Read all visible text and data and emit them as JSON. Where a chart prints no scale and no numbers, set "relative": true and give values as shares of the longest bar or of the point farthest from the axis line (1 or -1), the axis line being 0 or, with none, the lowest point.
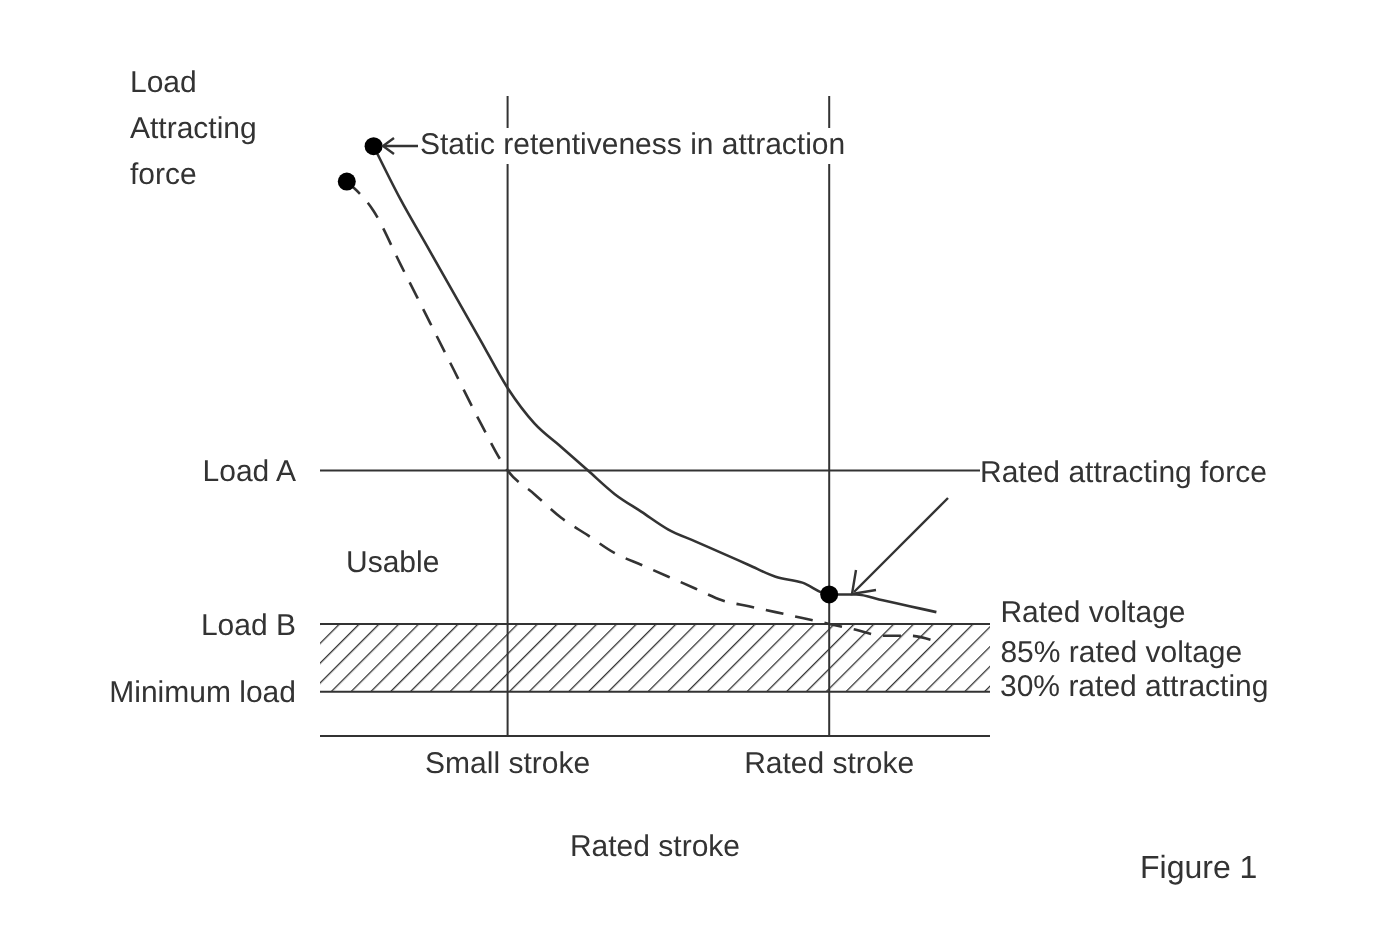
{
  "chart_data": {
    "type": "line",
    "relative": true,
    "grid": "x",
    "xlabel": "Rated stroke",
    "ylabel": "Load Attracting force",
    "categories": [
      null,
      null,
      null,
      null,
      null,
      null,
      null,
      "Small stroke",
      null,
      null,
      null,
      null,
      null,
      null,
      null,
      null,
      null,
      null,
      null,
      "Rated stroke",
      null,
      null,
      null,
      null,
      null,
      null
    ],
    "series": [
      {
        "name": "Rated voltage",
        "color": "#333333",
        "values": [
          null,
          null,
          1,
          0.91,
          0.83,
          0.75,
          0.67,
          0.59,
          0.53,
          0.49,
          0.45,
          0.41,
          0.38,
          0.35,
          0.33,
          0.31,
          0.29,
          0.27,
          0.26,
          0.24,
          0.24,
          0.23,
          0.22,
          0.21,
          null,
          null
        ]
      },
      {
        "name": "85% rated voltage",
        "color": "#333333",
        "line_style": "dashed",
        "values": [
          null,
          0.94,
          0.89,
          0.8,
          0.71,
          0.62,
          0.53,
          0.45,
          0.41,
          0.37,
          0.34,
          0.31,
          0.29,
          0.27,
          0.25,
          0.23,
          0.22,
          0.21,
          0.2,
          0.19,
          0.18,
          0.17,
          0.17,
          0.16,
          null,
          null
        ]
      },
      {
        "type": "scatter",
        "color": "#000000",
        "values": [
          null,
          0.94,
          1,
          null,
          null,
          null,
          null,
          null,
          null,
          null,
          null,
          null,
          null,
          null,
          null,
          null,
          null,
          null,
          null,
          0.24,
          null,
          null,
          null,
          null,
          null,
          null
        ]
      }
    ],
    "ref_lines": [
      {
        "axis": "y",
        "value": 0.45,
        "label": "Load A"
      },
      {
        "axis": "y",
        "value": 0.19,
        "label": "Load B"
      },
      {
        "axis": "y",
        "value": 0.075,
        "label": "Minimum load"
      }
    ],
    "bands": [
      {
        "axis": "y",
        "from": 0.075,
        "to": 0.19,
        "color": "#333333"
      }
    ],
    "annotations": [
      "Static retentiveness in attraction",
      "Rated attracting force",
      "30% rated attracting",
      "Usable",
      "Figure 1"
    ]
  }
}
